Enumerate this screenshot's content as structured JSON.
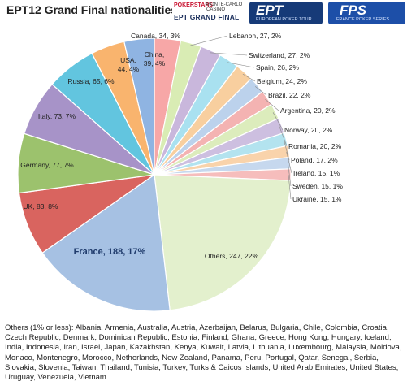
{
  "title": "EPT12 Grand Final nationalities",
  "logos": {
    "pokerstars": {
      "brand": "POKERSTARS",
      "partner": "MONTE-CARLO CASINO",
      "caption": "EPT GRAND FINAL"
    },
    "ept": {
      "mark": "EPT",
      "tagline": "EUROPEAN POKER TOUR"
    },
    "fps": {
      "mark": "FPS",
      "tagline": "FRANCE POKER SERIES"
    }
  },
  "chart_data": {
    "type": "pie",
    "start": "top, clockwise",
    "slices": [
      {
        "label": "Canada, 34, 3%",
        "value": 34,
        "color": "#f7a7a7"
      },
      {
        "label": "Lebanon, 27, 2%",
        "value": 27,
        "color": "#d9ecb4"
      },
      {
        "label": "Switzerland, 27, 2%",
        "value": 27,
        "color": "#c9b7dc"
      },
      {
        "label": "Spain, 26, 2%",
        "value": 26,
        "color": "#a9e1f0"
      },
      {
        "label": "Belgium, 24, 2%",
        "value": 24,
        "color": "#f8cf9f"
      },
      {
        "label": "Brazil, 22, 2%",
        "value": 22,
        "color": "#bcd2ec"
      },
      {
        "label": "Argentina, 20, 2%",
        "value": 20,
        "color": "#f4b3b2"
      },
      {
        "label": "Norway, 20, 2%",
        "value": 20,
        "color": "#dcecbc"
      },
      {
        "label": "Romania, 20, 2%",
        "value": 20,
        "color": "#cdbfe0"
      },
      {
        "label": "Poland, 17, 2%",
        "value": 17,
        "color": "#b3e3ef"
      },
      {
        "label": "Ireland, 15, 1%",
        "value": 15,
        "color": "#f9d3ab"
      },
      {
        "label": "Sweden, 15, 1%",
        "value": 15,
        "color": "#c6d8ee"
      },
      {
        "label": "Ukraine, 15, 1%",
        "value": 15,
        "color": "#f6bdbc"
      },
      {
        "label": "Others, 247, 22%",
        "value": 247,
        "color": "#e3f0cd"
      },
      {
        "label": "France, 188, 17%",
        "value": 188,
        "color": "#a6c1e3",
        "bold": true
      },
      {
        "label": "UK, 83, 8%",
        "value": 83,
        "color": "#d9645f"
      },
      {
        "label": "Germany, 77, 7%",
        "value": 77,
        "color": "#9cc26d"
      },
      {
        "label": "Italy, 73, 7%",
        "value": 73,
        "color": "#a793c8"
      },
      {
        "label": "Russia, 65, 6%",
        "value": 65,
        "color": "#62c5df"
      },
      {
        "label": "USA, 44, 4%",
        "value": 44,
        "color": "#f9b46e"
      },
      {
        "label": "China, 39, 4%",
        "value": 39,
        "color": "#8fb4e2"
      }
    ]
  },
  "footnote": "Others (1% or less): Albania, Armenia, Australia, Austria, Azerbaijan, Belarus, Bulgaria, Chile, Colombia, Croatia, Czech Republic, Denmark, Dominican Republic, Estonia, Finland, Ghana, Greece, Hong Kong, Hungary, Iceland, India, Indonesia, Iran, Israel, Japan, Kazakhstan, Kenya, Kuwait, Latvia, Lithuania, Luxembourg, Malaysia, Moldova, Monaco, Montenegro, Morocco, Netherlands, New Zealand, Panama, Peru, Portugal, Qatar, Senegal, Serbia, Slovakia, Slovenia, Taiwan, Thailand, Tunisia, Turkey, Turks & Caicos Islands, United Arab Emirates, United States, Uruguay, Venezuela, Vietnam"
}
